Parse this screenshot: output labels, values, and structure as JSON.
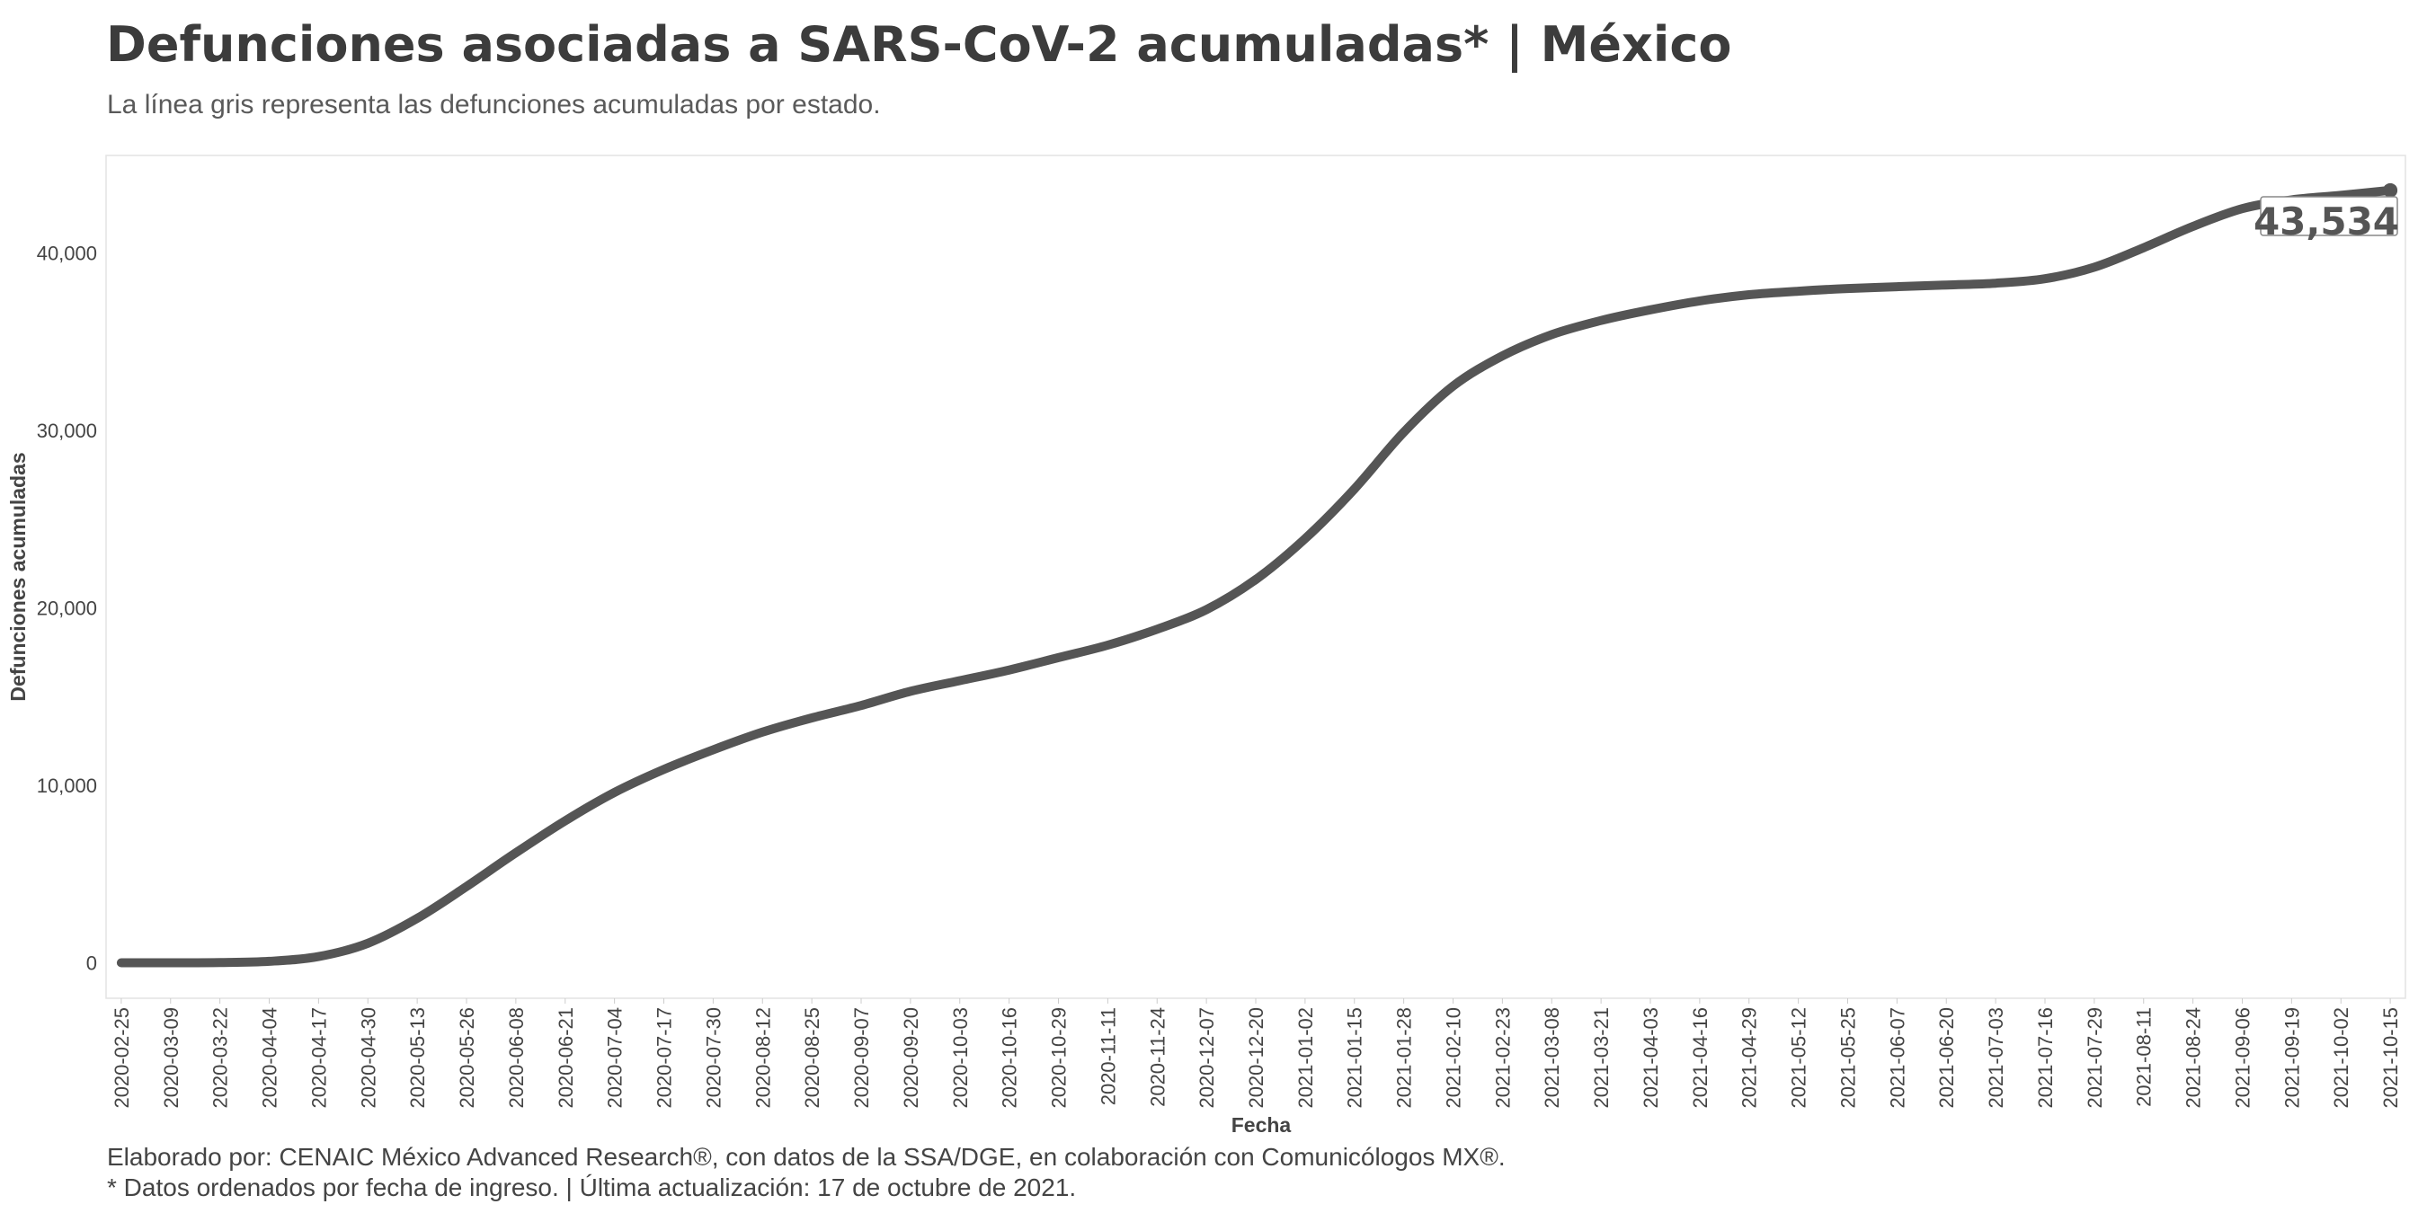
{
  "title": "Defunciones asociadas a SARS-CoV-2 acumuladas* | México",
  "subtitle": "La línea gris representa las defunciones acumuladas por estado.",
  "caption_line1": "Elaborado por: CENAIC México Advanced Research®, con datos de la SSA/DGE, en colaboración con Comunicólogos MX®.",
  "caption_line2": "* Datos ordenados por fecha de ingreso. | Última actualización: 17 de octubre de 2021.",
  "colors": {
    "line": "#555555",
    "panel_border": "#e3e3e3",
    "text": "#3c3c3c"
  },
  "chart_data": {
    "type": "line",
    "xlabel": "Fecha",
    "ylabel": "Defunciones acumuladas",
    "x_range": [
      "2020-02-21",
      "2021-10-19"
    ],
    "ylim": [
      -2000,
      45500
    ],
    "grid": false,
    "y_ticks": [
      0,
      10000,
      20000,
      30000,
      40000
    ],
    "y_tick_labels": [
      "0",
      "10,000",
      "20,000",
      "30,000",
      "40,000"
    ],
    "x_ticks": [
      "2020-02-25",
      "2020-03-09",
      "2020-03-22",
      "2020-04-04",
      "2020-04-17",
      "2020-04-30",
      "2020-05-13",
      "2020-05-26",
      "2020-06-08",
      "2020-06-21",
      "2020-07-04",
      "2020-07-17",
      "2020-07-30",
      "2020-08-12",
      "2020-08-25",
      "2020-09-07",
      "2020-09-20",
      "2020-10-03",
      "2020-10-16",
      "2020-10-29",
      "2020-11-11",
      "2020-11-24",
      "2020-12-07",
      "2020-12-20",
      "2021-01-02",
      "2021-01-15",
      "2021-01-28",
      "2021-02-10",
      "2021-02-23",
      "2021-03-08",
      "2021-03-21",
      "2021-04-03",
      "2021-04-16",
      "2021-04-29",
      "2021-05-12",
      "2021-05-25",
      "2021-06-07",
      "2021-06-20",
      "2021-07-03",
      "2021-07-16",
      "2021-07-29",
      "2021-08-11",
      "2021-08-24",
      "2021-09-06",
      "2021-09-19",
      "2021-10-02",
      "2021-10-15"
    ],
    "series": [
      {
        "x": [
          "2020-02-25",
          "2020-03-09",
          "2020-03-22",
          "2020-04-04",
          "2020-04-17",
          "2020-04-30",
          "2020-05-13",
          "2020-05-26",
          "2020-06-08",
          "2020-06-21",
          "2020-07-04",
          "2020-07-17",
          "2020-07-30",
          "2020-08-12",
          "2020-08-25",
          "2020-09-07",
          "2020-09-20",
          "2020-10-03",
          "2020-10-16",
          "2020-10-29",
          "2020-11-11",
          "2020-11-24",
          "2020-12-07",
          "2020-12-20",
          "2021-01-02",
          "2021-01-15",
          "2021-01-28",
          "2021-02-10",
          "2021-02-23",
          "2021-03-08",
          "2021-03-21",
          "2021-04-03",
          "2021-04-16",
          "2021-04-29",
          "2021-05-12",
          "2021-05-25",
          "2021-06-07",
          "2021-06-20",
          "2021-07-03",
          "2021-07-16",
          "2021-07-29",
          "2021-08-11",
          "2021-08-24",
          "2021-09-06",
          "2021-09-19",
          "2021-10-02",
          "2021-10-15"
        ],
        "y": [
          0,
          0,
          10,
          80,
          350,
          1100,
          2500,
          4300,
          6200,
          8000,
          9600,
          10900,
          12000,
          13000,
          13800,
          14500,
          15300,
          15900,
          16500,
          17200,
          17900,
          18800,
          19900,
          21600,
          23900,
          26700,
          29900,
          32500,
          34200,
          35400,
          36200,
          36800,
          37300,
          37650,
          37850,
          38000,
          38100,
          38200,
          38300,
          38550,
          39200,
          40300,
          41500,
          42500,
          43000,
          43250,
          43534
        ]
      }
    ],
    "end_label": "43,534"
  }
}
